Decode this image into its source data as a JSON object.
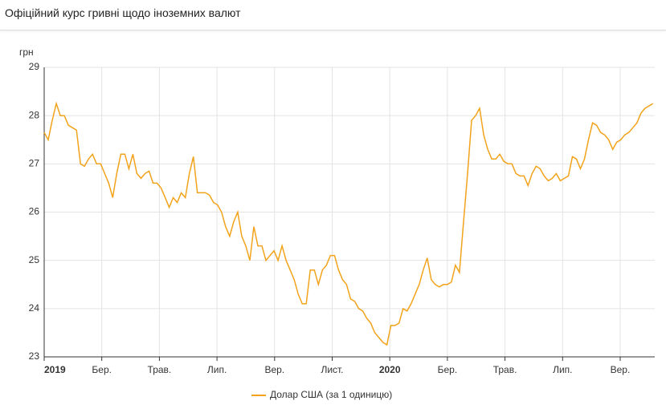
{
  "header": {
    "title": "Офіційний курс гривні щодо іноземних валют"
  },
  "chart_data": {
    "type": "line",
    "y_label": "грн",
    "x": [
      0,
      0.14,
      0.28,
      0.42,
      0.56,
      0.7,
      0.84,
      0.98,
      1.12,
      1.26,
      1.4,
      1.54,
      1.68,
      1.82,
      1.96,
      2.1,
      2.24,
      2.38,
      2.52,
      2.66,
      2.8,
      2.94,
      3.08,
      3.22,
      3.36,
      3.5,
      3.64,
      3.78,
      3.92,
      4.06,
      4.2,
      4.34,
      4.48,
      4.62,
      4.76,
      4.9,
      5.04,
      5.18,
      5.32,
      5.46,
      5.6,
      5.74,
      5.88,
      6.02,
      6.16,
      6.3,
      6.44,
      6.58,
      6.72,
      6.86,
      7,
      7.14,
      7.28,
      7.42,
      7.56,
      7.7,
      7.84,
      7.98,
      8.12,
      8.26,
      8.4,
      8.54,
      8.68,
      8.82,
      8.96,
      9.1,
      9.24,
      9.38,
      9.52,
      9.66,
      9.8,
      9.94,
      10.08,
      10.22,
      10.36,
      10.5,
      10.64,
      10.78,
      10.92,
      11.06,
      11.2,
      11.34,
      11.48,
      11.62,
      11.76,
      11.9,
      12.04,
      12.18,
      12.32,
      12.46,
      12.6,
      12.74,
      12.88,
      13.02,
      13.16,
      13.3,
      13.44,
      13.58,
      13.72,
      13.86,
      14,
      14.14,
      14.28,
      14.42,
      14.56,
      14.7,
      14.84,
      14.98,
      15.12,
      15.26,
      15.4,
      15.54,
      15.68,
      15.82,
      15.96,
      16.1,
      16.24,
      16.38,
      16.52,
      16.66,
      16.8,
      16.94,
      17.08,
      17.22,
      17.36,
      17.5,
      17.64,
      17.78,
      17.92,
      18.06,
      18.2,
      18.34,
      18.48,
      18.62,
      18.76,
      18.9,
      19.04,
      19.18,
      19.32,
      19.46,
      19.6,
      19.74,
      19.88,
      20.02,
      20.16,
      20.3,
      20.44,
      20.58,
      20.72,
      20.86,
      21,
      21.14
    ],
    "series": [
      {
        "name": "Долар США (за 1 одиницю)",
        "color": "#f2a31b",
        "values": [
          27.65,
          27.5,
          27.9,
          28.25,
          28.0,
          28.0,
          27.8,
          27.75,
          27.7,
          27.0,
          26.95,
          27.1,
          27.2,
          27.0,
          27.0,
          26.8,
          26.6,
          26.3,
          26.8,
          27.2,
          27.2,
          26.9,
          27.2,
          26.8,
          26.7,
          26.8,
          26.85,
          26.6,
          26.6,
          26.5,
          26.3,
          26.1,
          26.3,
          26.2,
          26.4,
          26.3,
          26.8,
          27.15,
          26.4,
          26.4,
          26.4,
          26.35,
          26.2,
          26.15,
          26.0,
          25.7,
          25.5,
          25.8,
          26.0,
          25.5,
          25.3,
          25.0,
          25.7,
          25.3,
          25.3,
          25.0,
          25.1,
          25.2,
          25.0,
          25.3,
          25.0,
          24.8,
          24.6,
          24.3,
          24.1,
          24.1,
          24.8,
          24.8,
          24.5,
          24.8,
          24.9,
          25.1,
          25.1,
          24.8,
          24.6,
          24.5,
          24.2,
          24.15,
          24.0,
          23.95,
          23.8,
          23.7,
          23.5,
          23.4,
          23.3,
          23.25,
          23.65,
          23.65,
          23.7,
          24.0,
          23.95,
          24.1,
          24.3,
          24.5,
          24.8,
          25.05,
          24.6,
          24.5,
          24.45,
          24.5,
          24.5,
          24.55,
          24.9,
          24.75,
          25.8,
          26.8,
          27.9,
          28.0,
          28.15,
          27.6,
          27.3,
          27.1,
          27.1,
          27.2,
          27.05,
          27.0,
          27.0,
          26.8,
          26.75,
          26.75,
          26.55,
          26.8,
          26.95,
          26.9,
          26.75,
          26.65,
          26.7,
          26.8,
          26.65,
          26.7,
          26.75,
          27.15,
          27.1,
          26.9,
          27.1,
          27.5,
          27.85,
          27.8,
          27.65,
          27.6,
          27.5,
          27.3,
          27.45,
          27.5,
          27.6,
          27.65,
          27.75,
          27.85,
          28.05,
          28.15,
          28.2,
          28.25
        ]
      }
    ],
    "xlim": [
      0,
      21.2
    ],
    "xticks": [
      {
        "value": 0,
        "label": "2019"
      },
      {
        "value": 2,
        "label": "Бер."
      },
      {
        "value": 4,
        "label": "Трав."
      },
      {
        "value": 6,
        "label": "Лип."
      },
      {
        "value": 8,
        "label": "Вер."
      },
      {
        "value": 10,
        "label": "Лист."
      },
      {
        "value": 12,
        "label": "2020"
      },
      {
        "value": 14,
        "label": "Бер."
      },
      {
        "value": 16,
        "label": "Трав."
      },
      {
        "value": 18,
        "label": "Лип."
      },
      {
        "value": 20,
        "label": "Вер."
      }
    ],
    "ylim": [
      23,
      29
    ],
    "yticks": [
      23,
      24,
      25,
      26,
      27,
      28,
      29
    ],
    "grid": true,
    "legend": "bottom"
  }
}
